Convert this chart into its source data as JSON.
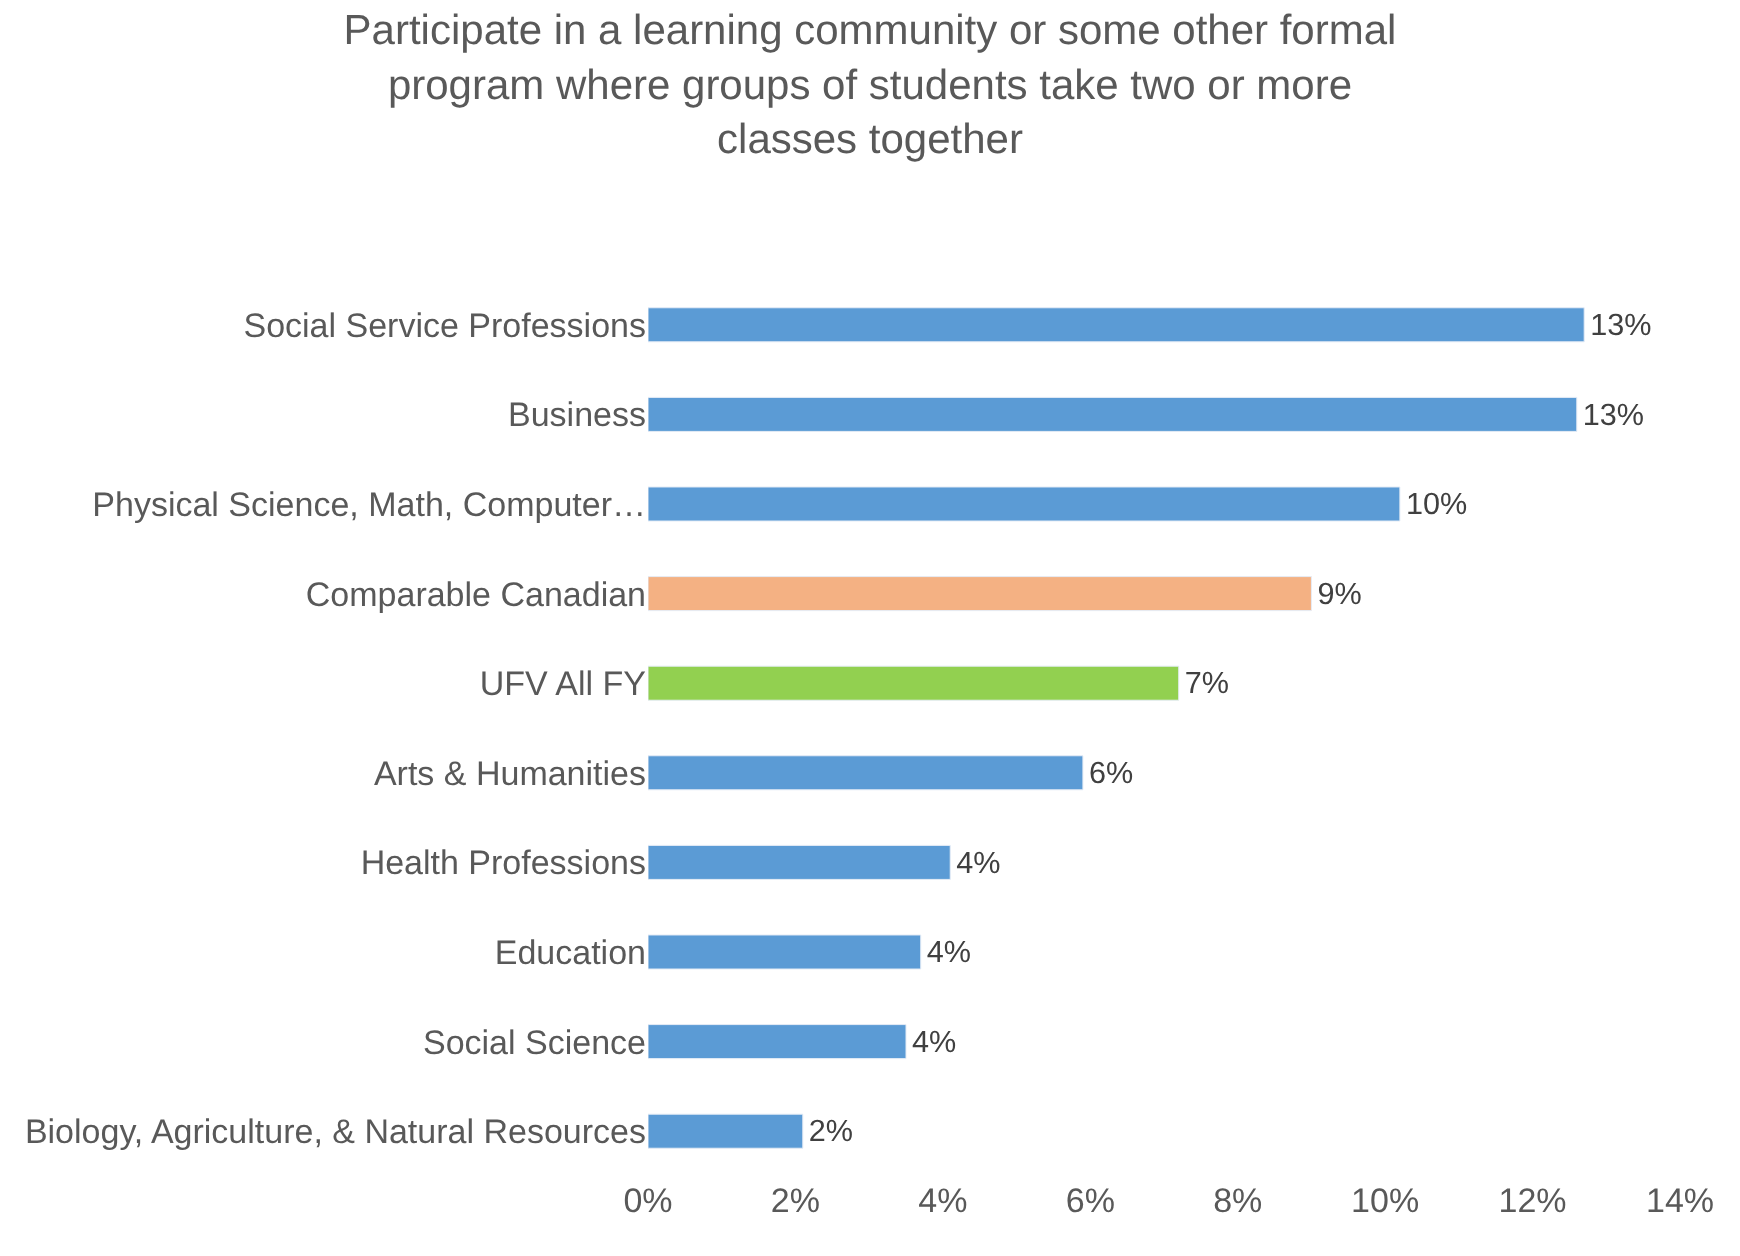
{
  "chart_data": {
    "type": "bar",
    "orientation": "horizontal",
    "title": "Participate in a learning community or some other formal program where groups of students take two or more classes together",
    "categories": [
      "Social Service Professions",
      "Business",
      "Physical Science, Math, Computer…",
      "Comparable Canadian",
      "UFV All FY",
      "Arts & Humanities",
      "Health Professions",
      "Education",
      "Social Science",
      "Biology, Agriculture, & Natural Resources"
    ],
    "values": [
      12.7,
      12.6,
      10.2,
      9.0,
      7.2,
      5.9,
      4.1,
      3.7,
      3.5,
      2.1
    ],
    "colors": [
      "#5b9bd5",
      "#5b9bd5",
      "#5b9bd5",
      "#f4b183",
      "#92d050",
      "#5b9bd5",
      "#5b9bd5",
      "#5b9bd5",
      "#5b9bd5",
      "#5b9bd5"
    ],
    "value_labels": [
      "13%",
      "13%",
      "10%",
      "9%",
      "7%",
      "6%",
      "4%",
      "4%",
      "4%",
      "2%"
    ],
    "xlim": [
      0,
      14
    ],
    "xticks": [
      {
        "value": 0,
        "label": "0%"
      },
      {
        "value": 2,
        "label": "2%"
      },
      {
        "value": 4,
        "label": "4%"
      },
      {
        "value": 6,
        "label": "6%"
      },
      {
        "value": 8,
        "label": "8%"
      },
      {
        "value": 10,
        "label": "10%"
      },
      {
        "value": 12,
        "label": "12%"
      },
      {
        "value": 14,
        "label": "14%"
      }
    ],
    "grid": false
  }
}
